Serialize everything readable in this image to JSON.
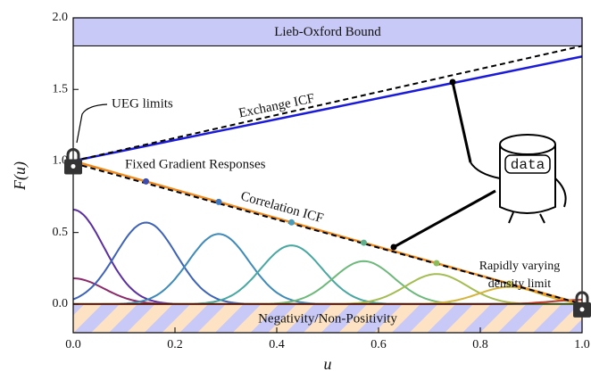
{
  "chart_data": {
    "type": "line",
    "xlabel": "u",
    "ylabel": "F(u)",
    "xlim": [
      0,
      1
    ],
    "ylim": [
      -0.2,
      2.0
    ],
    "xticks": [
      {
        "value": 0,
        "label": "0.0"
      },
      {
        "value": 0.2,
        "label": "0.2"
      },
      {
        "value": 0.4,
        "label": "0.4"
      },
      {
        "value": 0.6,
        "label": "0.6"
      },
      {
        "value": 0.8,
        "label": "0.8"
      },
      {
        "value": 1,
        "label": "1.0"
      }
    ],
    "yticks": [
      {
        "value": 0,
        "label": "0.0"
      },
      {
        "value": 0.5,
        "label": "0.5"
      },
      {
        "value": 1,
        "label": "1.0"
      },
      {
        "value": 1.5,
        "label": "1.5"
      },
      {
        "value": 2,
        "label": "2.0"
      }
    ],
    "regions": [
      {
        "label": "Lieb-Oxford Bound",
        "range": [
          1.804,
          2.0
        ],
        "color": "#c9c9f7"
      },
      {
        "label": "Negativity/Non-Positivity",
        "range": [
          -0.2,
          0
        ],
        "color": "#c9c9f7"
      }
    ],
    "series": [
      {
        "name": "Exchange ICF",
        "color": "#1a1adb",
        "x": [
          0,
          1
        ],
        "values": [
          1,
          1.73
        ]
      },
      {
        "color": "#000000",
        "dashed": true,
        "x": [
          0,
          1
        ],
        "values": [
          1,
          1.804
        ]
      },
      {
        "name": "Correlation ICF",
        "color": "#f08a1c",
        "x": [
          0,
          1
        ],
        "values": [
          1,
          0
        ]
      },
      {
        "color": "#000000",
        "dashed": true,
        "x": [
          0,
          1
        ],
        "values": [
          0.985,
          0
        ]
      }
    ],
    "points": {
      "x": [
        0.143,
        0.286,
        0.429,
        0.571,
        0.714,
        0.857
      ],
      "values": [
        0.857,
        0.714,
        0.571,
        0.429,
        0.286,
        0.143
      ],
      "colors": [
        "#3b4bb0",
        "#3e78c0",
        "#4a9ab8",
        "#5fb08c",
        "#8cbb5a",
        "#c2c049"
      ]
    },
    "bump_width": 0.06,
    "bumps": [
      {
        "center": 0,
        "height": 0.18,
        "color": "#8a2a6a"
      },
      {
        "center": 0,
        "height": 0.66,
        "color": "#5a2ea0"
      },
      {
        "center": 0.143,
        "height": 0.57,
        "color": "#3e62b8"
      },
      {
        "center": 0.286,
        "height": 0.49,
        "color": "#3f8ab8"
      },
      {
        "center": 0.429,
        "height": 0.41,
        "color": "#48a7a0"
      },
      {
        "center": 0.571,
        "height": 0.3,
        "color": "#6db87a"
      },
      {
        "center": 0.714,
        "height": 0.21,
        "color": "#a3bd52"
      },
      {
        "center": 0.857,
        "height": 0.12,
        "color": "#d4b43c"
      },
      {
        "center": 1,
        "height": 0.03,
        "color": "#c0392b"
      }
    ],
    "annotations": {
      "ueg": "UEG limits",
      "fixed": "Fixed Gradient Responses",
      "rapid_1": "Rapidly varying",
      "rapid_2": "density limit",
      "mascot": "data"
    }
  }
}
